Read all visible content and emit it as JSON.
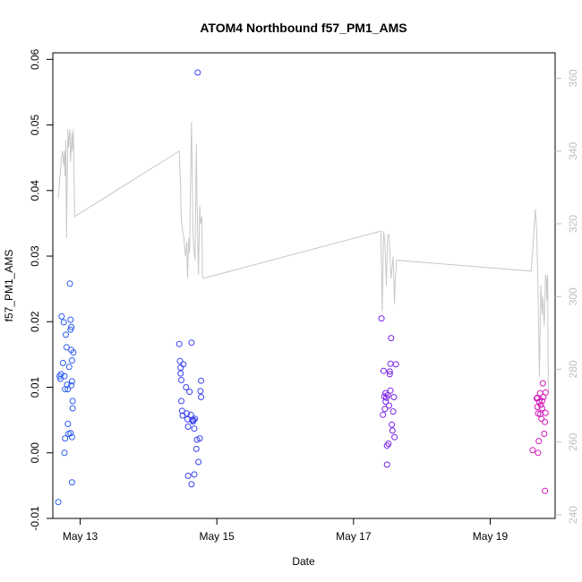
{
  "chart_data": {
    "type": "scatter",
    "title": "ATOM4 Northbound f57_PM1_AMS",
    "xlabel": "Date",
    "ylabel": "f57_PM1_AMS",
    "xlim": [
      12.6,
      19.95
    ],
    "ylim": [
      -0.01,
      0.061
    ],
    "y2lim": [
      239,
      367
    ],
    "grid": false,
    "x_ticks": [
      {
        "value": 13,
        "label": "May 13"
      },
      {
        "value": 15,
        "label": "May 15"
      },
      {
        "value": 17,
        "label": "May 17"
      },
      {
        "value": 19,
        "label": "May 19"
      }
    ],
    "y_ticks": [
      {
        "value": -0.01,
        "label": "-0.01"
      },
      {
        "value": 0.0,
        "label": "0.00"
      },
      {
        "value": 0.01,
        "label": "0.01"
      },
      {
        "value": 0.02,
        "label": "0.02"
      },
      {
        "value": 0.03,
        "label": "0.03"
      },
      {
        "value": 0.04,
        "label": "0.04"
      },
      {
        "value": 0.05,
        "label": "0.05"
      },
      {
        "value": 0.06,
        "label": "0.06"
      }
    ],
    "y2_ticks": [
      {
        "value": 240,
        "label": "240"
      },
      {
        "value": 260,
        "label": "260"
      },
      {
        "value": 280,
        "label": "280"
      },
      {
        "value": 300,
        "label": "300"
      },
      {
        "value": 320,
        "label": "320"
      },
      {
        "value": 340,
        "label": "340"
      },
      {
        "value": 360,
        "label": "360"
      }
    ],
    "series": [
      {
        "name": "f57_PM1_AMS",
        "kind": "scatter",
        "points": [
          {
            "x": 12.68,
            "y": -0.0075,
            "color": "#2a5cf0"
          },
          {
            "x": 12.7,
            "y": 0.0117,
            "color": "#2a5cf0"
          },
          {
            "x": 12.71,
            "y": 0.0113,
            "color": "#2a5cf0"
          },
          {
            "x": 12.72,
            "y": 0.012,
            "color": "#2a5cf0"
          },
          {
            "x": 12.73,
            "y": 0.0208,
            "color": "#2a5cf0"
          },
          {
            "x": 12.75,
            "y": 0.0137,
            "color": "#2a5cf0"
          },
          {
            "x": 12.76,
            "y": 0.0199,
            "color": "#2a5cf0"
          },
          {
            "x": 12.77,
            "y": 0.0117,
            "color": "#2a5cf0"
          },
          {
            "x": 12.78,
            "y": 0.0097,
            "color": "#2a5cf0"
          },
          {
            "x": 12.79,
            "y": 0.018,
            "color": "#2a5cf0"
          },
          {
            "x": 12.8,
            "y": 0.0161,
            "color": "#2a5cf0"
          },
          {
            "x": 12.81,
            "y": 0.0104,
            "color": "#2a5cf0"
          },
          {
            "x": 12.82,
            "y": 0.0044,
            "color": "#2a5cf0"
          },
          {
            "x": 12.83,
            "y": 0.0029,
            "color": "#2a5cf0"
          },
          {
            "x": 12.84,
            "y": 0.0131,
            "color": "#2a5cf0"
          },
          {
            "x": 12.85,
            "y": 0.0258,
            "color": "#2a5cf0"
          },
          {
            "x": 12.86,
            "y": 0.0203,
            "color": "#2a5cf0"
          },
          {
            "x": 12.86,
            "y": 0.0188,
            "color": "#2a5cf0"
          },
          {
            "x": 12.87,
            "y": 0.0157,
            "color": "#2a5cf0"
          },
          {
            "x": 12.87,
            "y": 0.0192,
            "color": "#2a5cf0"
          },
          {
            "x": 12.88,
            "y": 0.0141,
            "color": "#2a5cf0"
          },
          {
            "x": 12.88,
            "y": 0.0109,
            "color": "#2a5cf0"
          },
          {
            "x": 12.89,
            "y": 0.0079,
            "color": "#2a5cf0"
          },
          {
            "x": 12.89,
            "y": 0.0068,
            "color": "#2a5cf0"
          },
          {
            "x": 12.9,
            "y": 0.0153,
            "color": "#2a5cf0"
          },
          {
            "x": 12.88,
            "y": 0.0024,
            "color": "#2a5cf0"
          },
          {
            "x": 12.86,
            "y": 0.003,
            "color": "#2a5cf0"
          },
          {
            "x": 12.78,
            "y": 0.0022,
            "color": "#2a5cf0"
          },
          {
            "x": 12.77,
            "y": 0.0,
            "color": "#2a5cf0"
          },
          {
            "x": 12.88,
            "y": -0.0045,
            "color": "#2a5cf0"
          },
          {
            "x": 12.87,
            "y": 0.0103,
            "color": "#2a5cf0"
          },
          {
            "x": 12.82,
            "y": 0.0097,
            "color": "#2a5cf0"
          },
          {
            "x": 14.45,
            "y": 0.0166,
            "color": "#3a44f0"
          },
          {
            "x": 14.46,
            "y": 0.014,
            "color": "#3a44f0"
          },
          {
            "x": 14.47,
            "y": 0.013,
            "color": "#3a44f0"
          },
          {
            "x": 14.47,
            "y": 0.0121,
            "color": "#3a44f0"
          },
          {
            "x": 14.48,
            "y": 0.0111,
            "color": "#3a44f0"
          },
          {
            "x": 14.48,
            "y": 0.0079,
            "color": "#3a44f0"
          },
          {
            "x": 14.49,
            "y": 0.0064,
            "color": "#3a44f0"
          },
          {
            "x": 14.5,
            "y": 0.0057,
            "color": "#3a44f0"
          },
          {
            "x": 14.51,
            "y": 0.0135,
            "color": "#3a44f0"
          },
          {
            "x": 14.55,
            "y": 0.01,
            "color": "#3a44f0"
          },
          {
            "x": 14.56,
            "y": 0.006,
            "color": "#3a44f0"
          },
          {
            "x": 14.57,
            "y": 0.0051,
            "color": "#3a44f0"
          },
          {
            "x": 14.58,
            "y": 0.004,
            "color": "#3a44f0"
          },
          {
            "x": 14.6,
            "y": 0.0093,
            "color": "#3a44f0"
          },
          {
            "x": 14.62,
            "y": 0.0058,
            "color": "#3a44f0"
          },
          {
            "x": 14.63,
            "y": 0.0168,
            "color": "#3a44f0"
          },
          {
            "x": 14.64,
            "y": 0.005,
            "color": "#3a44f0"
          },
          {
            "x": 14.65,
            "y": 0.0048,
            "color": "#3a44f0"
          },
          {
            "x": 14.66,
            "y": 0.005,
            "color": "#3a44f0"
          },
          {
            "x": 14.67,
            "y": 0.0037,
            "color": "#3a44f0"
          },
          {
            "x": 14.68,
            "y": 0.0052,
            "color": "#3a44f0"
          },
          {
            "x": 14.7,
            "y": 0.0006,
            "color": "#3a44f0"
          },
          {
            "x": 14.71,
            "y": 0.002,
            "color": "#3a44f0"
          },
          {
            "x": 14.72,
            "y": 0.058,
            "color": "#3a44f0"
          },
          {
            "x": 14.73,
            "y": -0.0014,
            "color": "#3a44f0"
          },
          {
            "x": 14.75,
            "y": 0.0022,
            "color": "#3a44f0"
          },
          {
            "x": 14.76,
            "y": 0.0094,
            "color": "#3a44f0"
          },
          {
            "x": 14.77,
            "y": 0.011,
            "color": "#3a44f0"
          },
          {
            "x": 14.77,
            "y": 0.0085,
            "color": "#3a44f0"
          },
          {
            "x": 14.58,
            "y": -0.0035,
            "color": "#3a44f0"
          },
          {
            "x": 14.63,
            "y": -0.0048,
            "color": "#3a44f0"
          },
          {
            "x": 14.67,
            "y": -0.0033,
            "color": "#3a44f0"
          },
          {
            "x": 17.41,
            "y": 0.0205,
            "color": "#7a22e8"
          },
          {
            "x": 17.43,
            "y": 0.0058,
            "color": "#7a22e8"
          },
          {
            "x": 17.44,
            "y": 0.0125,
            "color": "#7a22e8"
          },
          {
            "x": 17.45,
            "y": 0.0086,
            "color": "#7a22e8"
          },
          {
            "x": 17.46,
            "y": 0.0067,
            "color": "#7a22e8"
          },
          {
            "x": 17.47,
            "y": 0.0091,
            "color": "#7a22e8"
          },
          {
            "x": 17.48,
            "y": 0.0084,
            "color": "#7a22e8"
          },
          {
            "x": 17.49,
            "y": 0.0011,
            "color": "#7a22e8"
          },
          {
            "x": 17.49,
            "y": -0.0018,
            "color": "#7a22e8"
          },
          {
            "x": 17.5,
            "y": 0.0088,
            "color": "#7a22e8"
          },
          {
            "x": 17.51,
            "y": 0.0014,
            "color": "#7a22e8"
          },
          {
            "x": 17.52,
            "y": 0.0072,
            "color": "#7a22e8"
          },
          {
            "x": 17.53,
            "y": 0.0124,
            "color": "#7a22e8"
          },
          {
            "x": 17.54,
            "y": 0.0136,
            "color": "#7a22e8"
          },
          {
            "x": 17.55,
            "y": 0.0175,
            "color": "#7a22e8"
          },
          {
            "x": 17.56,
            "y": 0.0043,
            "color": "#7a22e8"
          },
          {
            "x": 17.57,
            "y": 0.0034,
            "color": "#7a22e8"
          },
          {
            "x": 17.58,
            "y": 0.0063,
            "color": "#7a22e8"
          },
          {
            "x": 17.59,
            "y": 0.0085,
            "color": "#7a22e8"
          },
          {
            "x": 17.6,
            "y": 0.0024,
            "color": "#7a22e8"
          },
          {
            "x": 17.62,
            "y": 0.0135,
            "color": "#7a22e8"
          },
          {
            "x": 17.54,
            "y": 0.0095,
            "color": "#7a22e8"
          },
          {
            "x": 17.47,
            "y": 0.0078,
            "color": "#7a22e8"
          },
          {
            "x": 17.53,
            "y": 0.012,
            "color": "#7a22e8"
          },
          {
            "x": 19.62,
            "y": 0.0004,
            "color": "#d21ab8"
          },
          {
            "x": 19.68,
            "y": 0.0083,
            "color": "#d21ab8"
          },
          {
            "x": 19.69,
            "y": 0.007,
            "color": "#d21ab8"
          },
          {
            "x": 19.7,
            "y": 0.006,
            "color": "#d21ab8"
          },
          {
            "x": 19.71,
            "y": 0.0018,
            "color": "#d21ab8"
          },
          {
            "x": 19.72,
            "y": 0.0078,
            "color": "#d21ab8"
          },
          {
            "x": 19.73,
            "y": 0.0091,
            "color": "#d21ab8"
          },
          {
            "x": 19.74,
            "y": 0.0073,
            "color": "#d21ab8"
          },
          {
            "x": 19.75,
            "y": 0.0052,
            "color": "#d21ab8"
          },
          {
            "x": 19.76,
            "y": 0.0068,
            "color": "#d21ab8"
          },
          {
            "x": 19.77,
            "y": 0.0106,
            "color": "#d21ab8"
          },
          {
            "x": 19.78,
            "y": 0.0085,
            "color": "#d21ab8"
          },
          {
            "x": 19.79,
            "y": 0.0029,
            "color": "#d21ab8"
          },
          {
            "x": 19.8,
            "y": 0.0047,
            "color": "#d21ab8"
          },
          {
            "x": 19.8,
            "y": -0.0058,
            "color": "#d21ab8"
          },
          {
            "x": 19.81,
            "y": 0.0061,
            "color": "#d21ab8"
          },
          {
            "x": 19.81,
            "y": 0.0092,
            "color": "#d21ab8"
          },
          {
            "x": 19.7,
            "y": 0.0,
            "color": "#d21ab8"
          },
          {
            "x": 19.73,
            "y": 0.0059,
            "color": "#d21ab8"
          },
          {
            "x": 19.76,
            "y": 0.0079,
            "color": "#d21ab8"
          },
          {
            "x": 19.69,
            "y": 0.0084,
            "color": "#d21ab8"
          }
        ]
      },
      {
        "name": "secondary",
        "kind": "line",
        "axis": "right",
        "color": "#c8c8c8",
        "points": [
          [
            12.68,
            327
          ],
          [
            12.72,
            337
          ],
          [
            12.74,
            340
          ],
          [
            12.76,
            336
          ],
          [
            12.77,
            340
          ],
          [
            12.78,
            333
          ],
          [
            12.79,
            343
          ],
          [
            12.8,
            316
          ],
          [
            12.82,
            346
          ],
          [
            12.83,
            341
          ],
          [
            12.85,
            346
          ],
          [
            12.86,
            337
          ],
          [
            12.88,
            345
          ],
          [
            12.89,
            340
          ],
          [
            12.9,
            346
          ],
          [
            12.92,
            322
          ],
          [
            14.45,
            340
          ],
          [
            14.47,
            330
          ],
          [
            14.48,
            321
          ],
          [
            14.5,
            318
          ],
          [
            14.52,
            316
          ],
          [
            14.54,
            311
          ],
          [
            14.56,
            315
          ],
          [
            14.57,
            305
          ],
          [
            14.59,
            316
          ],
          [
            14.6,
            312
          ],
          [
            14.62,
            338
          ],
          [
            14.63,
            348
          ],
          [
            14.65,
            318
          ],
          [
            14.66,
            314
          ],
          [
            14.68,
            310
          ],
          [
            14.7,
            342
          ],
          [
            14.71,
            327
          ],
          [
            14.73,
            306
          ],
          [
            14.75,
            325
          ],
          [
            14.76,
            320
          ],
          [
            14.78,
            322
          ],
          [
            14.79,
            306
          ],
          [
            14.8,
            305
          ],
          [
            17.4,
            318
          ],
          [
            17.42,
            296
          ],
          [
            17.44,
            318
          ],
          [
            17.46,
            315
          ],
          [
            17.48,
            303
          ],
          [
            17.5,
            317
          ],
          [
            17.52,
            317
          ],
          [
            17.55,
            305
          ],
          [
            17.58,
            311
          ],
          [
            17.6,
            298
          ],
          [
            17.61,
            304
          ],
          [
            17.63,
            310
          ],
          [
            19.6,
            307
          ],
          [
            19.63,
            315
          ],
          [
            19.66,
            324
          ],
          [
            19.68,
            318
          ],
          [
            19.7,
            302
          ],
          [
            19.72,
            278
          ],
          [
            19.74,
            303
          ],
          [
            19.76,
            295
          ],
          [
            19.77,
            300
          ],
          [
            19.79,
            292
          ],
          [
            19.81,
            306
          ],
          [
            19.82,
            305
          ],
          [
            19.83,
            299
          ],
          [
            19.84,
            306
          ],
          [
            19.85,
            274
          ]
        ]
      }
    ]
  }
}
